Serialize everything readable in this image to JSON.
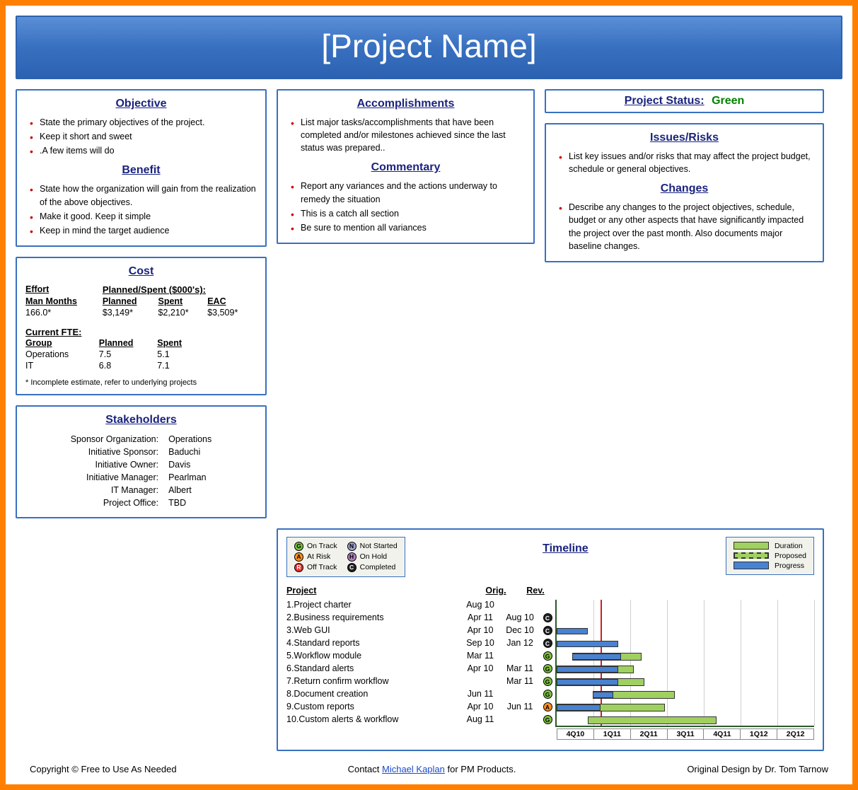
{
  "header": {
    "title": "[Project Name]"
  },
  "status": {
    "label": "Project Status:",
    "value": "Green",
    "value_color": "#008000"
  },
  "objective": {
    "title": "Objective",
    "items": [
      "State the primary objectives of the project.",
      "Keep it short and sweet",
      ".A few items will do"
    ]
  },
  "benefit": {
    "title": "Benefit",
    "items": [
      "State how the organization will gain from the realization of the above objectives.",
      "Make it good. Keep it simple",
      "Keep in mind the target audience"
    ]
  },
  "accomplishments": {
    "title": "Accomplishments",
    "items": [
      "List major tasks/accomplishments that have been completed and/or milestones achieved since the last status was prepared.."
    ]
  },
  "commentary": {
    "title": "Commentary",
    "items": [
      "Report any variances and the actions underway to remedy the situation",
      "This is a catch all section",
      "Be sure to mention all variances"
    ]
  },
  "issues": {
    "title": "Issues/Risks",
    "items": [
      "List key issues and/or risks that may affect the project budget, schedule or general objectives."
    ]
  },
  "changes": {
    "title": "Changes",
    "items": [
      "Describe any changes to the project objectives, schedule, budget or any other aspects that have significantly impacted the project over the past month. Also documents major baseline changes."
    ]
  },
  "cost": {
    "title": "Cost",
    "effort_label": "Effort",
    "planned_spent_label": "Planned/Spent ($000's):",
    "headers": [
      "Man Months",
      "Planned",
      "Spent",
      "EAC"
    ],
    "values": [
      "166.0*",
      "$3,149*",
      "$2,210*",
      "$3,509*"
    ],
    "fte_label": "Current FTE:",
    "fte_headers": [
      "Group",
      "Planned",
      "Spent"
    ],
    "fte_rows": [
      [
        "Operations",
        "7.5",
        "5.1"
      ],
      [
        "IT",
        "6.8",
        "7.1"
      ]
    ],
    "note": "* Incomplete estimate, refer to underlying projects"
  },
  "stakeholders": {
    "title": "Stakeholders",
    "rows": [
      [
        "Sponsor Organization:",
        "Operations"
      ],
      [
        "Initiative Sponsor:",
        "Baduchi"
      ],
      [
        "Initiative Owner:",
        "Davis"
      ],
      [
        "Initiative Manager:",
        "Pearlman"
      ],
      [
        "IT Manager:",
        "Albert"
      ],
      [
        "Project Office:",
        "TBD"
      ]
    ]
  },
  "timeline": {
    "title": "Timeline",
    "status_legend": [
      {
        "code": "G",
        "label": "On Track",
        "cls": "dot-g"
      },
      {
        "code": "A",
        "label": "At Risk",
        "cls": "dot-a"
      },
      {
        "code": "R",
        "label": "Off Track",
        "cls": "dot-r"
      },
      {
        "code": "N",
        "label": "Not Started",
        "cls": "dot-n"
      },
      {
        "code": "H",
        "label": "On Hold",
        "cls": "dot-h"
      },
      {
        "code": "C",
        "label": "Completed",
        "cls": "dot-c"
      }
    ],
    "bar_legend": [
      {
        "label": "Duration",
        "cls": "sw-dur"
      },
      {
        "label": "Proposed",
        "cls": "sw-prop"
      },
      {
        "label": "Progress",
        "cls": "sw-prog"
      }
    ],
    "list_headers": [
      "Project",
      "Orig.",
      "Rev."
    ],
    "axis": [
      "4Q10",
      "1Q11",
      "2Q11",
      "3Q11",
      "4Q11",
      "1Q12",
      "2Q12"
    ],
    "today_pct": 17,
    "rows": [
      {
        "n": "1",
        "name": "Project charter",
        "orig": "Aug 10",
        "rev": "",
        "status": "",
        "bars": []
      },
      {
        "n": "2",
        "name": "Business requirements",
        "orig": "Apr 11",
        "rev": "Aug 10",
        "status": "C",
        "bars": []
      },
      {
        "n": "3",
        "name": "Web GUI",
        "orig": "Apr 10",
        "rev": "Dec 10",
        "status": "C",
        "bars": [
          {
            "type": "prog",
            "start": 0,
            "end": 12
          }
        ]
      },
      {
        "n": "4",
        "name": "Standard reports",
        "orig": "Sep 10",
        "rev": "Jan 12",
        "status": "C",
        "bars": [
          {
            "type": "prog",
            "start": 0,
            "end": 24
          }
        ]
      },
      {
        "n": "5",
        "name": "Workflow module",
        "orig": "Mar 11",
        "rev": "",
        "status": "G",
        "bars": [
          {
            "type": "dur",
            "start": 6,
            "end": 33
          },
          {
            "type": "prog",
            "start": 6,
            "end": 25
          }
        ]
      },
      {
        "n": "6",
        "name": "Standard alerts",
        "orig": "Apr 10",
        "rev": "Mar 11",
        "status": "G",
        "bars": [
          {
            "type": "dur",
            "start": 0,
            "end": 30
          },
          {
            "type": "prog",
            "start": 0,
            "end": 24
          }
        ]
      },
      {
        "n": "7",
        "name": "Return confirm workflow",
        "orig": "",
        "rev": "Mar 11",
        "status": "G",
        "bars": [
          {
            "type": "dur",
            "start": 0,
            "end": 34
          },
          {
            "type": "prog",
            "start": 0,
            "end": 24
          }
        ]
      },
      {
        "n": "8",
        "name": "Document creation",
        "orig": "Jun 11",
        "rev": "",
        "status": "G",
        "bars": [
          {
            "type": "dur",
            "start": 14,
            "end": 46
          },
          {
            "type": "prog",
            "start": 14,
            "end": 22
          }
        ]
      },
      {
        "n": "9",
        "name": "Custom reports",
        "orig": "Apr 10",
        "rev": "Jun 11",
        "status": "A",
        "bars": [
          {
            "type": "dur",
            "start": 0,
            "end": 42
          },
          {
            "type": "prog",
            "start": 0,
            "end": 17
          }
        ]
      },
      {
        "n": "10",
        "name": "Custom alerts & workflow",
        "orig": "Aug 11",
        "rev": "",
        "status": "G",
        "bars": [
          {
            "type": "dur",
            "start": 12,
            "end": 62
          }
        ]
      }
    ]
  },
  "footer": {
    "left": "Copyright © Free to Use As Needed",
    "mid_pre": "Contact ",
    "mid_link": "Michael Kaplan",
    "mid_post": " for PM Products.",
    "right": "Original Design by Dr. Tom Tarnow"
  },
  "colors": {
    "border_orange": "#ff8000",
    "card_border": "#3870c0",
    "title_color": "#1a237e",
    "bullet_color": "#d00000"
  }
}
